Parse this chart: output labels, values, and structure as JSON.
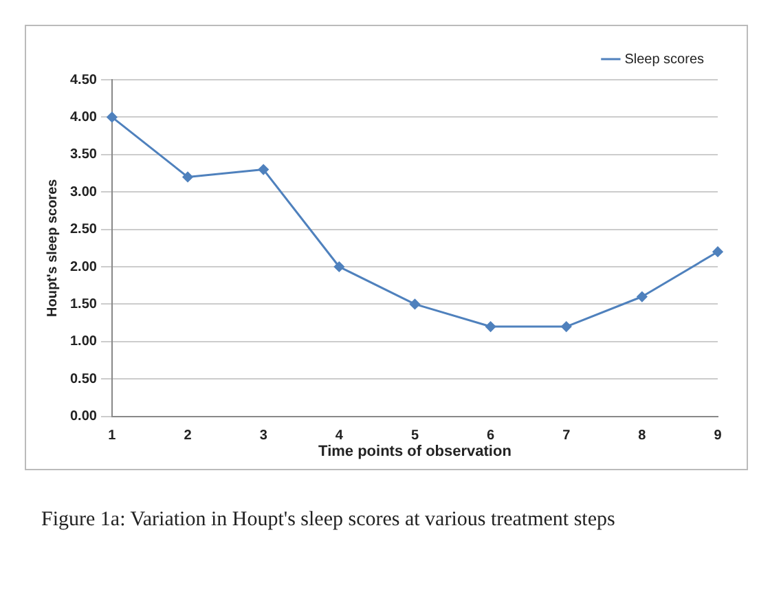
{
  "chart_data": {
    "type": "line",
    "xlabel": "Time points of observation",
    "ylabel": "Houpt's sleep scores",
    "categories": [
      "1",
      "2",
      "3",
      "4",
      "5",
      "6",
      "7",
      "8",
      "9"
    ],
    "series": [
      {
        "name": "Sleep scores",
        "color": "#4f81bd",
        "values": [
          4.0,
          3.2,
          3.3,
          2.0,
          1.5,
          1.2,
          1.2,
          1.6,
          2.2
        ]
      }
    ],
    "ylim": [
      0,
      4.5
    ],
    "yticks": [
      {
        "value": 0,
        "label": "0.00"
      },
      {
        "value": 0.5,
        "label": "0.50"
      },
      {
        "value": 1,
        "label": "1.00"
      },
      {
        "value": 1.5,
        "label": "1.50"
      },
      {
        "value": 2,
        "label": "2.00"
      },
      {
        "value": 2.5,
        "label": "2.50"
      },
      {
        "value": 3,
        "label": "3.00"
      },
      {
        "value": 3.5,
        "label": "3.50"
      },
      {
        "value": 4,
        "label": "4.00"
      },
      {
        "value": 4.5,
        "label": "4.50"
      }
    ],
    "grid": "y",
    "legend": "top right",
    "marker": "diamond",
    "line_style": "solid",
    "annotations": [
      "Figure 1a: Variation in Houpt's sleep scores at various treatment steps"
    ]
  }
}
